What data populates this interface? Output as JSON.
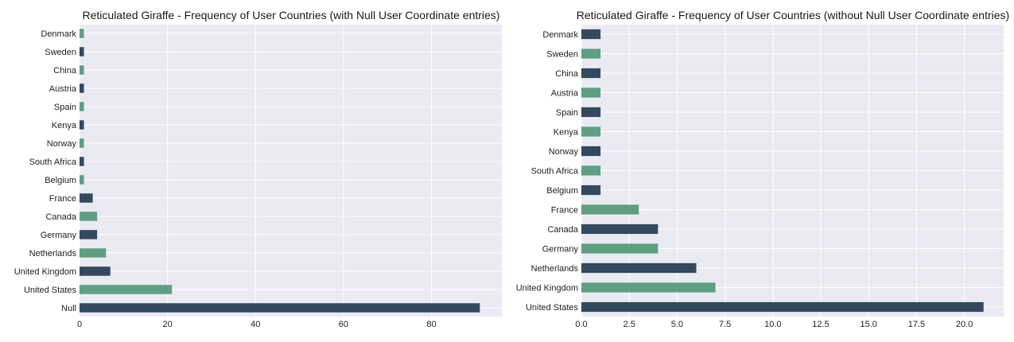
{
  "colors": {
    "panel_bg": "#eaeaf2",
    "grid": "#ffffff",
    "bar_dark": "#34495e",
    "bar_green": "#5e9f82"
  },
  "chart_data": [
    {
      "type": "bar",
      "orientation": "horizontal",
      "title": "Reticulated Giraffe - Frequency of User Countries (with Null User Coordinate entries)",
      "categories": [
        "Denmark",
        "Sweden",
        "China",
        "Austria",
        "Spain",
        "Kenya",
        "Norway",
        "South Africa",
        "Belgium",
        "France",
        "Canada",
        "Germany",
        "Netherlands",
        "United Kingdom",
        "United States",
        "Null"
      ],
      "values": [
        1,
        1,
        1,
        1,
        1,
        1,
        1,
        1,
        1,
        3,
        4,
        4,
        6,
        7,
        21,
        91
      ],
      "bar_colors": [
        "green",
        "dark",
        "green",
        "dark",
        "green",
        "dark",
        "green",
        "dark",
        "green",
        "dark",
        "green",
        "dark",
        "green",
        "dark",
        "green",
        "dark"
      ],
      "xlim": [
        0,
        96
      ],
      "xticks": [
        0,
        20,
        40,
        60,
        80
      ],
      "xtick_labels": [
        "0",
        "20",
        "40",
        "60",
        "80"
      ],
      "grid": true
    },
    {
      "type": "bar",
      "orientation": "horizontal",
      "title": "Reticulated Giraffe - Frequency of User Countries (without Null User Coordinate entries)",
      "categories": [
        "Denmark",
        "Sweden",
        "China",
        "Austria",
        "Spain",
        "Kenya",
        "Norway",
        "South Africa",
        "Belgium",
        "France",
        "Canada",
        "Germany",
        "Netherlands",
        "United Kingdom",
        "United States"
      ],
      "values": [
        1,
        1,
        1,
        1,
        1,
        1,
        1,
        1,
        1,
        3,
        4,
        4,
        6,
        7,
        21
      ],
      "bar_colors": [
        "dark",
        "green",
        "dark",
        "green",
        "dark",
        "green",
        "dark",
        "green",
        "dark",
        "green",
        "dark",
        "green",
        "dark",
        "green",
        "dark"
      ],
      "xlim": [
        0,
        22.05
      ],
      "xticks": [
        0,
        2.5,
        5,
        7.5,
        10,
        12.5,
        15,
        17.5,
        20
      ],
      "xtick_labels": [
        "0.0",
        "2.5",
        "5.0",
        "7.5",
        "10.0",
        "12.5",
        "15.0",
        "17.5",
        "20.0"
      ],
      "grid": true
    }
  ]
}
